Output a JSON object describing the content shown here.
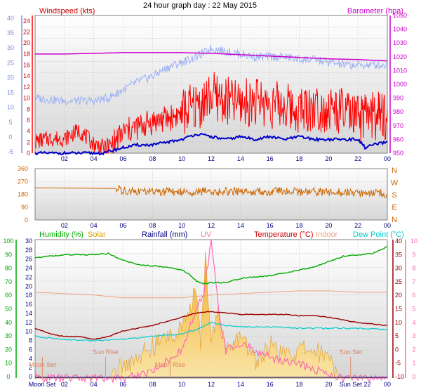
{
  "title": "24 hour graph day : 22 May 2015",
  "colors": {
    "wind_speed": "#ff0000",
    "wind_gust_band": "#9db0f5",
    "wind_avg": "#0000cc",
    "barometer": "#cc00cc",
    "direction": "#cc6600",
    "humidity": "#00aa00",
    "solar": "#f5a000",
    "rainfall": "#000080",
    "uv": "#ff69b4",
    "temperature": "#990000",
    "indoor": "#f0a080",
    "dew_point": "#00cccc",
    "left_axis": "#8090e0",
    "right_axis": "#cc00cc"
  },
  "chart_data": [
    {
      "type": "line",
      "panel": "wind",
      "labels": {
        "left": "Windspeed (kts)",
        "right": "Barometer (hpa)"
      },
      "x_ticks": [
        "02",
        "04",
        "06",
        "08",
        "10",
        "12",
        "14",
        "16",
        "18",
        "20",
        "22",
        "00"
      ],
      "left_scale_ticks": [
        "0",
        "2",
        "4",
        "6",
        "8",
        "10",
        "12",
        "14",
        "16",
        "18",
        "20",
        "22",
        "24"
      ],
      "left_outer_ticks": [
        "-5",
        "0",
        "5",
        "10",
        "15",
        "20",
        "25",
        "30",
        "35",
        "40"
      ],
      "right_scale_ticks": [
        "950",
        "960",
        "970",
        "980",
        "990",
        "1000",
        "1010",
        "1020",
        "1030",
        "1040",
        "1050"
      ],
      "ylim_kts": [
        0,
        25
      ],
      "ylim_hpa": [
        950,
        1050
      ],
      "grid": true,
      "series": [
        {
          "name": "Windspeed (kts)",
          "x": [
            0,
            1,
            2,
            3,
            4,
            5,
            6,
            7,
            8,
            9,
            10,
            11,
            11.5,
            12,
            13,
            14,
            15,
            16,
            17,
            18,
            19,
            20,
            21,
            22,
            22.5,
            23,
            24
          ],
          "y": [
            2,
            2.5,
            2.5,
            4,
            1.5,
            0.5,
            3.5,
            4.5,
            5.5,
            6,
            7,
            8,
            9,
            10,
            9,
            8.5,
            9,
            8.5,
            8,
            7.5,
            8,
            7.5,
            7,
            5.5,
            6,
            6.5,
            6
          ]
        },
        {
          "name": "",
          "x": [
            0,
            2,
            4,
            5,
            6,
            7,
            8,
            9,
            10,
            11,
            12,
            13,
            14,
            15,
            16,
            17,
            18,
            19,
            20,
            21,
            22,
            23,
            24
          ],
          "y": [
            10,
            9.5,
            9.5,
            10,
            11.5,
            13,
            14,
            15.5,
            16.5,
            17.5,
            19,
            18.5,
            18,
            17.5,
            17.5,
            17.5,
            17,
            17,
            16.5,
            16,
            16,
            16,
            16
          ]
        },
        {
          "name": "",
          "x": [
            0,
            2,
            4,
            4.8,
            5,
            6,
            7,
            8,
            9,
            10,
            11,
            12,
            13,
            14,
            15,
            16,
            17,
            18,
            19,
            20,
            21,
            22,
            22.5,
            23,
            24
          ],
          "y": [
            0,
            0,
            0,
            0,
            0.3,
            1,
            1.5,
            1.5,
            2,
            2.5,
            3.5,
            3,
            2.5,
            3,
            2.5,
            3,
            2.5,
            3,
            2.5,
            2.5,
            2.5,
            2.5,
            1,
            1.5,
            2
          ]
        },
        {
          "name": "Barometer (hpa)",
          "x": [
            0,
            2,
            4,
            6,
            8,
            10,
            12,
            14,
            16,
            18,
            20,
            22,
            24
          ],
          "y": [
            1022,
            1022,
            1022.5,
            1023,
            1023,
            1023,
            1022.5,
            1021.5,
            1020.5,
            1019.5,
            1018.5,
            1018,
            1017
          ]
        }
      ]
    },
    {
      "type": "line",
      "panel": "direction",
      "x_ticks": [
        "02",
        "04",
        "06",
        "08",
        "10",
        "12",
        "14",
        "16",
        "18",
        "20",
        "22",
        "00"
      ],
      "left_ticks": [
        "360",
        "270",
        "180",
        "90",
        "0"
      ],
      "right_ticks": [
        "N",
        "W",
        "S",
        "E",
        "N"
      ],
      "ylim": [
        0,
        360
      ],
      "grid": true,
      "series": [
        {
          "name": "",
          "x": [
            0,
            2,
            4,
            5.5,
            6,
            7,
            8,
            10,
            12,
            14,
            16,
            18,
            20,
            22,
            24
          ],
          "y": [
            225,
            224,
            222,
            221,
            205,
            200,
            198,
            198,
            200,
            198,
            200,
            198,
            196,
            190,
            185
          ]
        }
      ]
    },
    {
      "type": "area",
      "panel": "climate",
      "labels": {
        "humidity": "Humidity (%)",
        "solar": "Solar",
        "rainfall": "Rainfall (mm)",
        "uv": "UV",
        "temperature": "Temperature (°C)",
        "indoor": "Indoor",
        "dew_point": "Dew Point (°C)"
      },
      "x_ticks": [
        "02",
        "04",
        "06",
        "08",
        "10",
        "12",
        "14",
        "16",
        "18",
        "20",
        "22",
        "00"
      ],
      "left_outer_ticks": [
        "0",
        "10",
        "20",
        "30",
        "40",
        "50",
        "60",
        "70",
        "80",
        "90",
        "100"
      ],
      "left_inner_ticks": [
        "0",
        "2",
        "4",
        "6",
        "8",
        "10",
        "12",
        "14",
        "16",
        "18",
        "20",
        "22",
        "24",
        "26",
        "28",
        "30"
      ],
      "right_inner_ticks": [
        "-10",
        "-5",
        "0",
        "5",
        "10",
        "15",
        "20",
        "25",
        "30",
        "35",
        "40"
      ],
      "right_outer_ticks": [
        "0",
        "1",
        "2",
        "3",
        "4",
        "5",
        "6",
        "7",
        "8",
        "9",
        "10"
      ],
      "ylim_temp": [
        -10,
        40
      ],
      "ylim_humidity": [
        0,
        100
      ],
      "events": [
        {
          "label": "Moon Set",
          "hour": 0.5
        },
        {
          "label": "Sun Rise",
          "hour": 4.8
        },
        {
          "label": "Moon Rise",
          "hour": 9.2
        },
        {
          "label": "Sun Set",
          "hour": 21.5
        }
      ],
      "grid": true,
      "series": [
        {
          "name": "Humidity (%)",
          "x": [
            0,
            1,
            2,
            3,
            4,
            5,
            6,
            7,
            8,
            9,
            10,
            10.5,
            11,
            11.5,
            12,
            13,
            14,
            15,
            16,
            17,
            18,
            19,
            20,
            21,
            22,
            23,
            24
          ],
          "y": [
            87,
            88,
            89,
            89,
            89,
            90,
            85,
            82,
            81,
            80,
            78,
            75,
            70,
            68,
            69,
            69,
            72,
            73,
            74,
            76,
            78,
            80,
            84,
            88,
            89,
            90,
            95
          ]
        },
        {
          "name": "Temperature (°C)",
          "x": [
            0,
            1,
            2,
            3,
            4,
            5,
            6,
            7,
            8,
            9,
            10,
            11,
            12,
            13,
            14,
            15,
            16,
            17,
            18,
            19,
            20,
            21,
            22,
            23,
            24
          ],
          "y": [
            8,
            6,
            5,
            5,
            4,
            5,
            7,
            8,
            9,
            10.5,
            12,
            13.5,
            14,
            13.5,
            13,
            13,
            13,
            13,
            12.5,
            12.5,
            12,
            11,
            10,
            9.5,
            9
          ]
        },
        {
          "name": "Indoor",
          "x": [
            0,
            2,
            4,
            6,
            8,
            10,
            12,
            14,
            16,
            18,
            20,
            22,
            24
          ],
          "y": [
            21,
            20.5,
            20,
            19,
            19,
            19,
            20,
            20.5,
            21,
            21.5,
            21.5,
            21,
            21
          ]
        },
        {
          "name": "Dew Point (°C)",
          "x": [
            0,
            2,
            4,
            6,
            8,
            10,
            11,
            12,
            13,
            14,
            16,
            18,
            20,
            22,
            24
          ],
          "y": [
            5,
            4,
            3.5,
            4,
            5,
            6,
            7.5,
            10,
            9,
            8.5,
            8.5,
            8,
            8,
            8,
            7.5
          ]
        },
        {
          "name": "Solar",
          "x": [
            0,
            5,
            6,
            7,
            8,
            9,
            10,
            10.5,
            11,
            11.3,
            11.6,
            12,
            12.5,
            13,
            14,
            15,
            16,
            17,
            18,
            19,
            20,
            20.5,
            21,
            24
          ],
          "y": [
            0,
            0,
            2,
            4,
            5.5,
            7.5,
            9,
            11,
            17,
            6,
            22,
            8,
            12,
            4,
            8,
            3,
            6,
            4,
            5,
            5,
            4,
            1,
            0,
            0
          ]
        },
        {
          "name": "UV",
          "x": [
            0,
            6,
            8,
            10,
            11,
            11.5,
            12,
            12.5,
            13,
            14,
            16,
            18,
            20,
            21,
            24
          ],
          "y": [
            0,
            0,
            0.5,
            2,
            5,
            6,
            10,
            5,
            2,
            2.5,
            1.5,
            1,
            0.3,
            0,
            0
          ]
        },
        {
          "name": "Rainfall (mm)",
          "x": [
            0,
            24
          ],
          "y": [
            0,
            0
          ]
        }
      ]
    }
  ]
}
